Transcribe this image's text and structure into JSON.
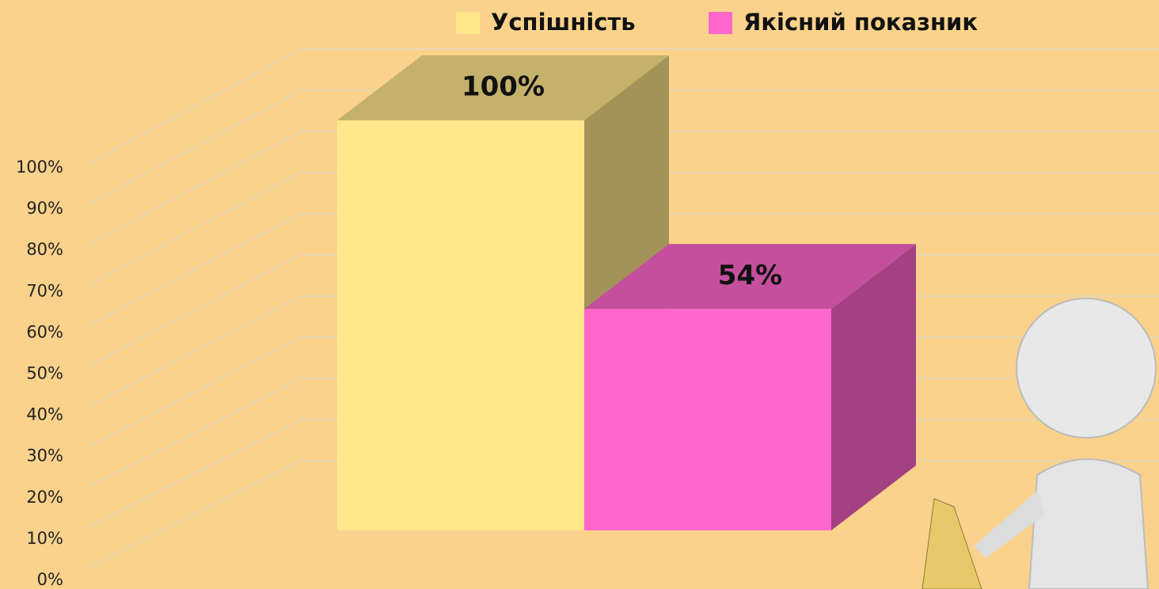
{
  "chart_data": {
    "type": "bar",
    "categories": [
      null
    ],
    "series": [
      {
        "name": "Успішність",
        "color": "#FFE68A",
        "values": [
          100
        ],
        "value_labels": [
          "100%"
        ]
      },
      {
        "name": "Якісний показник",
        "color": "#FF66CC",
        "values": [
          54
        ],
        "value_labels": [
          "54%"
        ]
      }
    ],
    "ylim": [
      0,
      100
    ],
    "yticks": [
      {
        "value": 0,
        "label": "0%"
      },
      {
        "value": 10,
        "label": "10%"
      },
      {
        "value": 20,
        "label": "20%"
      },
      {
        "value": 30,
        "label": "30%"
      },
      {
        "value": 40,
        "label": "40%"
      },
      {
        "value": 50,
        "label": "50%"
      },
      {
        "value": 60,
        "label": "60%"
      },
      {
        "value": 70,
        "label": "70%"
      },
      {
        "value": 80,
        "label": "80%"
      },
      {
        "value": 90,
        "label": "90%"
      },
      {
        "value": 100,
        "label": "100%"
      }
    ],
    "grid": true,
    "legend": "top"
  }
}
